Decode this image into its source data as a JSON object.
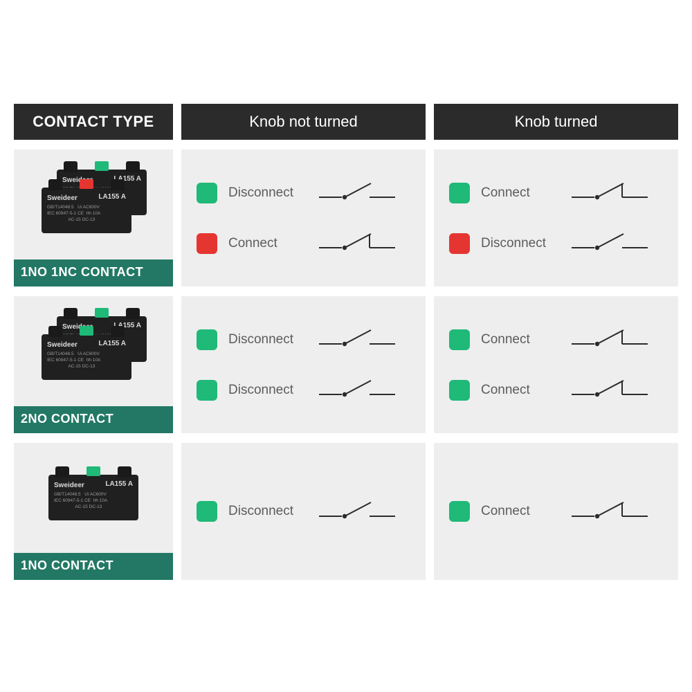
{
  "colors": {
    "header_bg": "#2b2b2b",
    "header_text": "#ffffff",
    "cell_bg": "#eeeeee",
    "caption_bg": "rgba(16,110,89,0.92)",
    "caption_text": "#ffffff",
    "label_text": "#5c5c5c",
    "green": "#1fb978",
    "red": "#e53531",
    "block_body": "#202020",
    "block_text": "#dcdcdc",
    "symbol_stroke": "#2b2b2b"
  },
  "headers": {
    "left": "CONTACT TYPE",
    "mid": "Knob not turned",
    "right": "Knob turned"
  },
  "block_print": {
    "brand": "Sweideer",
    "model": "LA155 A",
    "fine_lines": "GB/T14048.5   Ui AC600V\nIEC 60947-5-1 CE  Ith 10A\n                 AC-15 DC-13"
  },
  "rows": [
    {
      "caption": "1NO 1NC CONTACT",
      "blocks": [
        {
          "nub_color": "#1fb978"
        },
        {
          "nub_color": "#e53531"
        }
      ],
      "not_turned": [
        {
          "tag_color": "#1fb978",
          "label": "Disconnect",
          "symbol": "open"
        },
        {
          "tag_color": "#e53531",
          "label": "Connect",
          "symbol": "closed"
        }
      ],
      "turned": [
        {
          "tag_color": "#1fb978",
          "label": "Connect",
          "symbol": "closed"
        },
        {
          "tag_color": "#e53531",
          "label": "Disconnect",
          "symbol": "open"
        }
      ]
    },
    {
      "caption": "2NO  CONTACT",
      "blocks": [
        {
          "nub_color": "#1fb978"
        },
        {
          "nub_color": "#1fb978"
        }
      ],
      "not_turned": [
        {
          "tag_color": "#1fb978",
          "label": "Disconnect",
          "symbol": "open"
        },
        {
          "tag_color": "#1fb978",
          "label": "Disconnect",
          "symbol": "open"
        }
      ],
      "turned": [
        {
          "tag_color": "#1fb978",
          "label": "Connect",
          "symbol": "closed"
        },
        {
          "tag_color": "#1fb978",
          "label": "Connect",
          "symbol": "closed"
        }
      ]
    },
    {
      "caption": "1NO  CONTACT",
      "blocks": [
        {
          "nub_color": "#1fb978"
        }
      ],
      "not_turned": [
        {
          "tag_color": "#1fb978",
          "label": "Disconnect",
          "symbol": "open"
        }
      ],
      "turned": [
        {
          "tag_color": "#1fb978",
          "label": "Connect",
          "symbol": "closed"
        }
      ]
    }
  ],
  "symbol_style": {
    "stroke_width": 2,
    "node_radius": 3.2
  }
}
